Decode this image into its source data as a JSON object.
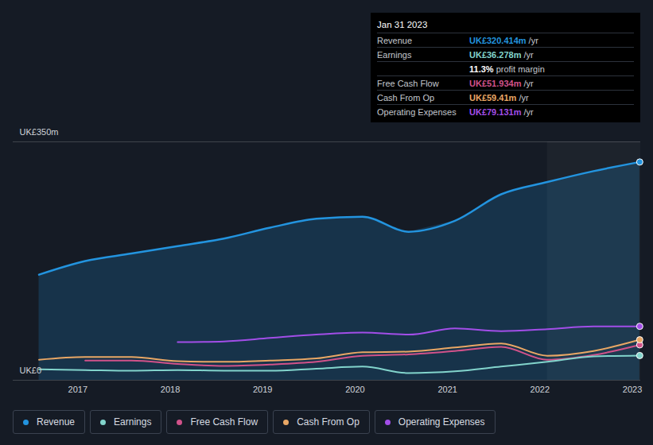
{
  "chart_data": {
    "type": "line",
    "x": [
      2016.58,
      2017.08,
      2017.58,
      2018.08,
      2018.58,
      2019.08,
      2019.58,
      2020.08,
      2020.58,
      2021.08,
      2021.58,
      2022.08,
      2022.58,
      2023.08
    ],
    "xlim": [
      2016.3,
      2023.09
    ],
    "xticks": [
      2017,
      2018,
      2019,
      2020,
      2021,
      2022,
      2023
    ],
    "ylim": [
      0,
      350
    ],
    "yticks": [
      {
        "value": 0,
        "label": "UK£0"
      },
      {
        "value": 350,
        "label": "UK£350m"
      }
    ],
    "grid": true,
    "legend": "bottom",
    "series": [
      {
        "name": "Revenue",
        "type": "area",
        "color": "#2394df",
        "values": [
          155,
          175,
          186,
          197,
          208,
          224,
          237,
          240,
          218,
          234,
          273,
          291,
          307,
          320.414
        ]
      },
      {
        "name": "Earnings",
        "color": "#82d4cc",
        "values": [
          16,
          15,
          14,
          15,
          14,
          14,
          17,
          20,
          10.5,
          13,
          20,
          27,
          35,
          36.278
        ]
      },
      {
        "name": "Free Cash Flow",
        "color": "#d1528a",
        "values": [
          null,
          29,
          29,
          24,
          21,
          23,
          27,
          36,
          38,
          43,
          49,
          30,
          37,
          51.934
        ]
      },
      {
        "name": "Cash From Op",
        "color": "#e9a765",
        "values": [
          30,
          34,
          34,
          28,
          27,
          29,
          32,
          41,
          42,
          48,
          54,
          36,
          43,
          59.41
        ]
      },
      {
        "name": "Operating Expenses",
        "color": "#a24ee8",
        "values": [
          null,
          null,
          null,
          56,
          57,
          62,
          67,
          70,
          67,
          76,
          72,
          75,
          79,
          79.131
        ]
      }
    ],
    "highlight": {
      "x": [
        2022.08,
        2023.09
      ]
    },
    "tooltip": {
      "date": "Jan 31 2023",
      "rows": [
        {
          "name": "Revenue",
          "value": 320.414,
          "value_label": "UK£320.414m",
          "suffix": "/yr"
        },
        {
          "name": "Earnings",
          "value": 36.278,
          "value_label": "UK£36.278m",
          "suffix": "/yr"
        },
        {
          "name": null,
          "value": 11.3,
          "value_label": "11.3%",
          "suffix": "profit margin"
        },
        {
          "name": "Free Cash Flow",
          "value": 51.934,
          "value_label": "UK£51.934m",
          "suffix": "/yr"
        },
        {
          "name": "Cash From Op",
          "value": 59.41,
          "value_label": "UK£59.41m",
          "suffix": "/yr"
        },
        {
          "name": "Operating Expenses",
          "value": 79.131,
          "value_label": "UK£79.131m",
          "suffix": "/yr"
        }
      ]
    }
  }
}
